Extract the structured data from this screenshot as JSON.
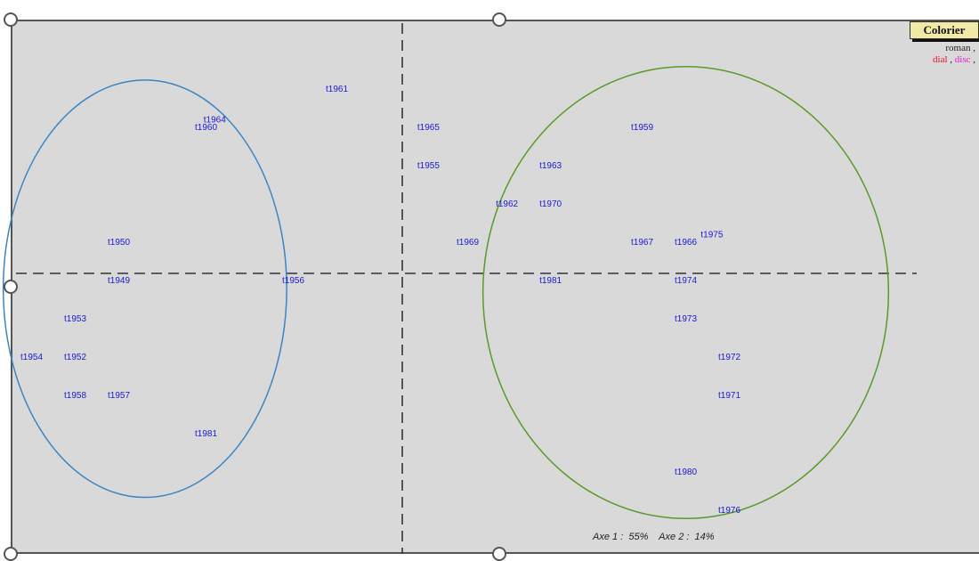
{
  "toolbar": {
    "colorier_label": "Colorier"
  },
  "legend": {
    "line1": "roman ,",
    "line2": [
      {
        "text": "dial",
        "color": "#e8102a"
      },
      {
        "text": " , ",
        "color": "#222222"
      },
      {
        "text": "disc",
        "color": "#e81ad6"
      },
      {
        "text": " ,",
        "color": "#222222"
      }
    ]
  },
  "axis_caption": "Axe 1 :  55%    Axe 2 :  14%",
  "colors": {
    "label": "#1a1ad8",
    "axis": "#333333",
    "cluster_left": "#3a86c4",
    "cluster_right": "#5a9a2a",
    "panel": "#d9d9d9"
  },
  "chart_data": {
    "type": "scatter",
    "title": "",
    "xlabel": "",
    "ylabel": "",
    "grid": false,
    "xlim": [
      -9,
      12
    ],
    "ylim": [
      -7,
      6.5
    ],
    "axes": {
      "axe1_percent": 55,
      "axe2_percent": 14
    },
    "points": [
      {
        "label": "t1961",
        "x": -1.5,
        "y": 4.8
      },
      {
        "label": "t1964",
        "x": -4.3,
        "y": 4.0
      },
      {
        "label": "t1960",
        "x": -4.5,
        "y": 3.8
      },
      {
        "label": "t1965",
        "x": 0.6,
        "y": 3.8
      },
      {
        "label": "t1959",
        "x": 5.5,
        "y": 3.8
      },
      {
        "label": "t1955",
        "x": 0.6,
        "y": 2.8
      },
      {
        "label": "t1963",
        "x": 3.4,
        "y": 2.8
      },
      {
        "label": "t1962",
        "x": 2.4,
        "y": 1.8
      },
      {
        "label": "t1970",
        "x": 3.4,
        "y": 1.8
      },
      {
        "label": "t1950",
        "x": -6.5,
        "y": 0.8
      },
      {
        "label": "t1969",
        "x": 1.5,
        "y": 0.8
      },
      {
        "label": "t1967",
        "x": 5.5,
        "y": 0.8
      },
      {
        "label": "t1966",
        "x": 6.5,
        "y": 0.8
      },
      {
        "label": "t1975",
        "x": 7.1,
        "y": 1.0
      },
      {
        "label": "t1949",
        "x": -6.5,
        "y": -0.2
      },
      {
        "label": "t1956",
        "x": -2.5,
        "y": -0.2
      },
      {
        "label": "t1981",
        "x": 3.4,
        "y": -0.2
      },
      {
        "label": "t1974",
        "x": 6.5,
        "y": -0.2
      },
      {
        "label": "t1953",
        "x": -7.5,
        "y": -1.2
      },
      {
        "label": "t1973",
        "x": 6.5,
        "y": -1.2
      },
      {
        "label": "t1954",
        "x": -8.5,
        "y": -2.2
      },
      {
        "label": "t1952",
        "x": -7.5,
        "y": -2.2
      },
      {
        "label": "t1972",
        "x": 7.5,
        "y": -2.2
      },
      {
        "label": "t1958",
        "x": -7.5,
        "y": -3.2
      },
      {
        "label": "t1957",
        "x": -6.5,
        "y": -3.2
      },
      {
        "label": "t1971",
        "x": 7.5,
        "y": -3.2
      },
      {
        "label": "t1981",
        "x": -4.5,
        "y": -4.2
      },
      {
        "label": "t1980",
        "x": 6.5,
        "y": -5.2
      },
      {
        "label": "t1976",
        "x": 7.5,
        "y": -6.2
      }
    ],
    "clusters": [
      {
        "cx": -5.9,
        "cy": -0.4,
        "rx": 3.25,
        "ry": 5.45
      },
      {
        "cx": 6.5,
        "cy": -0.5,
        "rx": 4.65,
        "ry": 5.9
      }
    ]
  }
}
